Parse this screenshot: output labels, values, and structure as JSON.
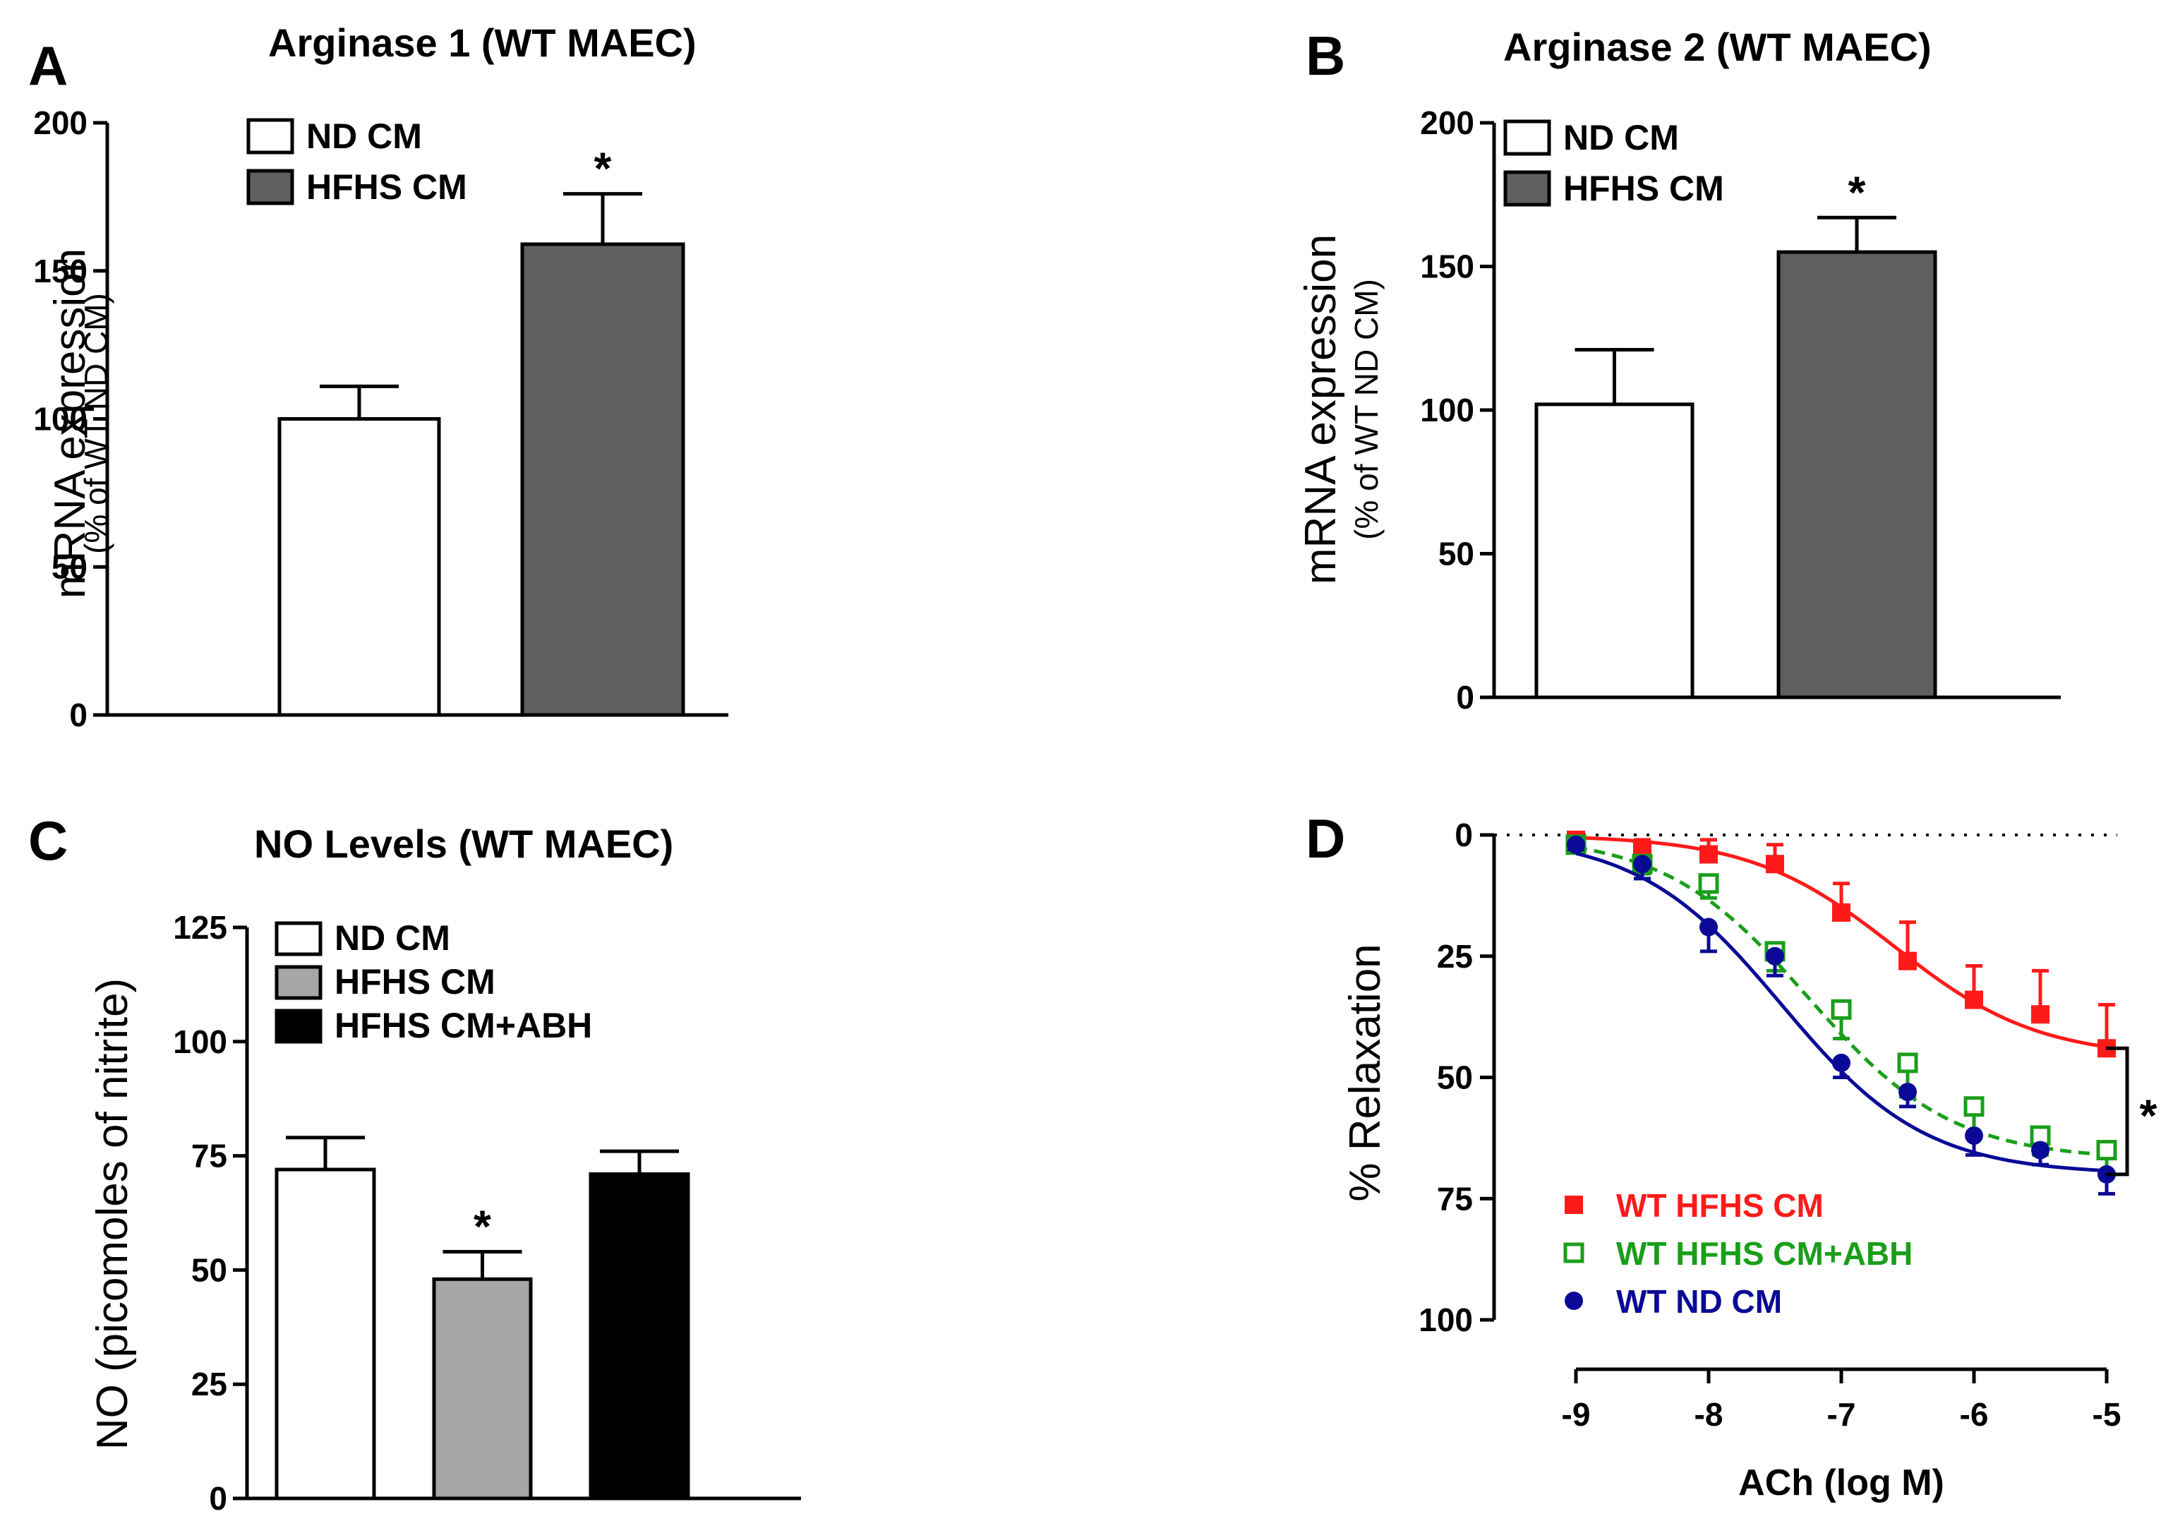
{
  "chart_data": [
    {
      "panel": "A",
      "type": "bar",
      "title": "Arginase 1  (WT MAEC)",
      "ylabel": "mRNA expression",
      "ylabel_sub": "(% of WT ND CM)",
      "ylim": [
        0,
        200
      ],
      "yticks": [
        "0",
        "50",
        "100",
        "150",
        "200"
      ],
      "legend_position": "top-left",
      "series": [
        {
          "name": "ND CM",
          "value": 100,
          "error": 11,
          "color": "#ffffff",
          "star": ""
        },
        {
          "name": "HFHS CM",
          "value": 159,
          "error": 17,
          "color": "#5f5f5f",
          "star": "*"
        }
      ]
    },
    {
      "panel": "B",
      "type": "bar",
      "title": "Arginase 2  (WT MAEC)",
      "ylabel": "mRNA expression",
      "ylabel_sub": "(% of WT ND CM)",
      "ylim": [
        0,
        200
      ],
      "yticks": [
        "0",
        "50",
        "100",
        "150",
        "200"
      ],
      "legend_position": "top-left",
      "series": [
        {
          "name": "ND CM",
          "value": 102,
          "error": 19,
          "color": "#ffffff",
          "star": ""
        },
        {
          "name": "HFHS CM",
          "value": 155,
          "error": 12,
          "color": "#5f5f5f",
          "star": "*"
        }
      ]
    },
    {
      "panel": "C",
      "type": "bar",
      "title": "NO Levels  (WT MAEC)",
      "ylabel": "NO (picomoles of nitrite)",
      "ylim": [
        0,
        125
      ],
      "yticks": [
        "0",
        "25",
        "50",
        "75",
        "100",
        "125"
      ],
      "legend_position": "top-left",
      "series": [
        {
          "name": "ND CM",
          "value": 72,
          "error": 7,
          "color": "#ffffff",
          "star": ""
        },
        {
          "name": "HFHS CM",
          "value": 48,
          "error": 6,
          "color": "#a6a6a6",
          "star": "*"
        },
        {
          "name": "HFHS CM+ABH",
          "value": 71,
          "error": 5,
          "color": "#000000",
          "star": ""
        }
      ]
    },
    {
      "panel": "D",
      "type": "line",
      "ylabel": "% Relaxation",
      "xlabel": "ACh (log M)",
      "xlim": [
        -9,
        -5
      ],
      "ylim": [
        0,
        100
      ],
      "y_inverted": true,
      "xticks": [
        "-9",
        "-8",
        "-7",
        "-6",
        "-5"
      ],
      "yticks": [
        "0",
        "25",
        "50",
        "75",
        "100"
      ],
      "legend_position": "bottom-left",
      "significance": "*",
      "x": [
        -9,
        -8.5,
        -8,
        -7.5,
        -7,
        -6.5,
        -6,
        -5.5,
        -5
      ],
      "series": [
        {
          "name": "WT HFHS CM",
          "color": "#ff1a1a",
          "marker": "filled-square",
          "dashed": false,
          "values": [
            1,
            3,
            4,
            6,
            16,
            26,
            34,
            37,
            44
          ],
          "errors": [
            1,
            2,
            3,
            4,
            6,
            8,
            7,
            9,
            9
          ],
          "fit": {
            "bottom": 0,
            "top": 46,
            "logec50": -6.6,
            "hill": 0.8
          }
        },
        {
          "name": "WT HFHS CM+ABH",
          "color": "#1a9e1a",
          "marker": "open-square",
          "dashed": true,
          "values": [
            2,
            6,
            10,
            24,
            36,
            47,
            56,
            62,
            65
          ],
          "errors": [
            1,
            2,
            3,
            4,
            6,
            7,
            6,
            4,
            5
          ],
          "fit": {
            "bottom": 0,
            "top": 67,
            "logec50": -7.25,
            "hill": 0.8
          }
        },
        {
          "name": "WT ND CM",
          "color": "#0a0a96",
          "marker": "filled-circle",
          "dashed": false,
          "values": [
            2,
            6,
            19,
            25,
            47,
            53,
            62,
            65,
            70
          ],
          "errors": [
            1,
            3,
            5,
            4,
            3,
            3,
            4,
            3,
            4
          ],
          "fit": {
            "bottom": 0,
            "top": 70,
            "logec50": -7.45,
            "hill": 0.8
          }
        }
      ]
    }
  ]
}
